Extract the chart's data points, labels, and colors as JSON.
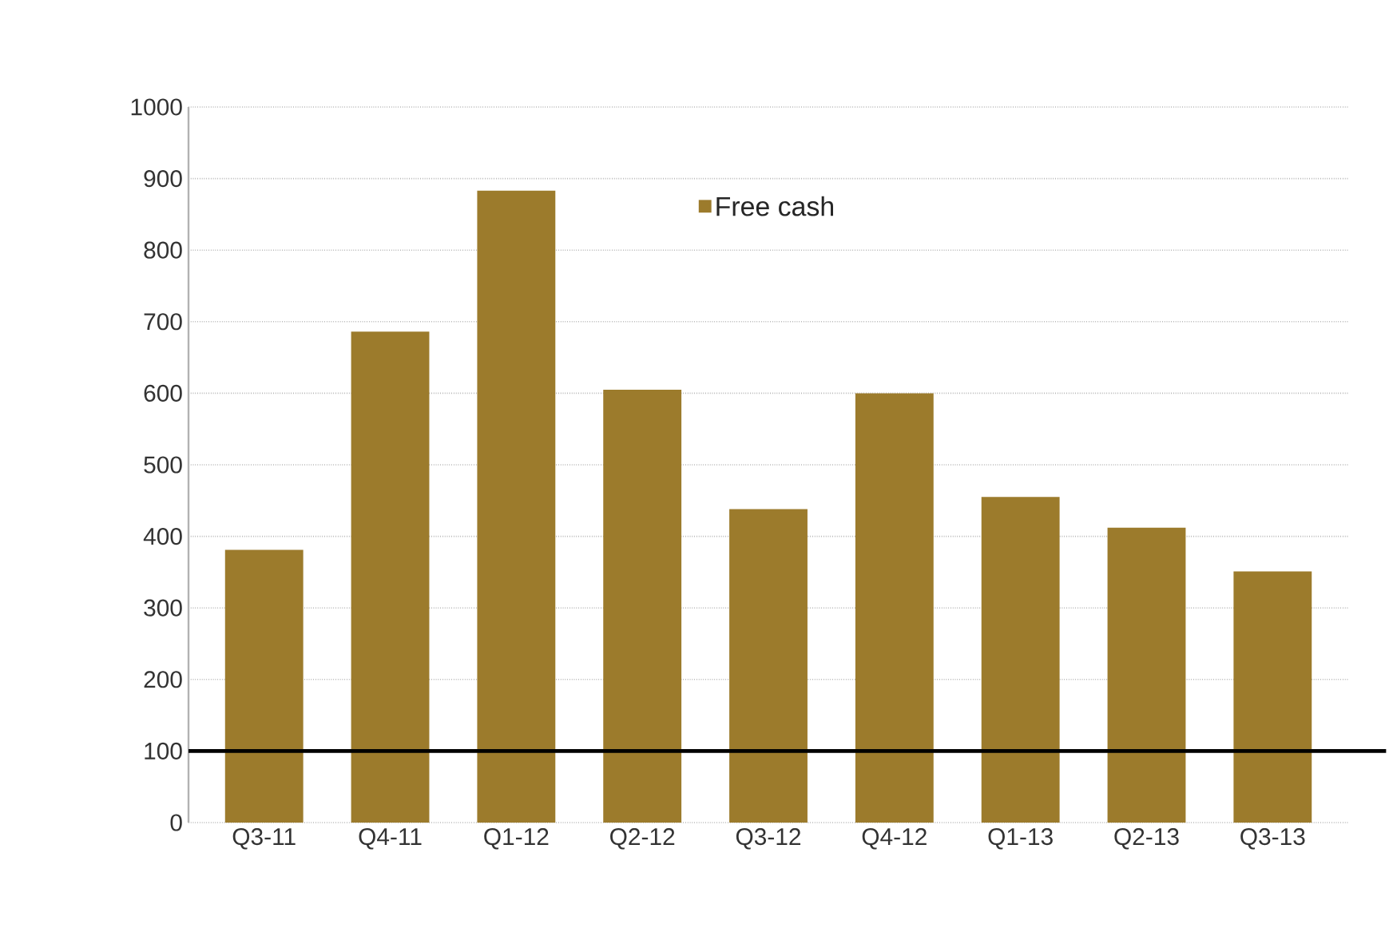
{
  "chart_data": {
    "type": "bar",
    "categories": [
      "Q3-11",
      "Q4-11",
      "Q1-12",
      "Q2-12",
      "Q3-12",
      "Q4-12",
      "Q1-13",
      "Q2-13",
      "Q3-13"
    ],
    "series": [
      {
        "name": "Free cash",
        "color": "#9c7b2c",
        "values": [
          381,
          686,
          883,
          605,
          438,
          600,
          455,
          412,
          351
        ]
      }
    ],
    "ylim": [
      0,
      1000
    ],
    "yticks": [
      0,
      100,
      200,
      300,
      400,
      500,
      600,
      700,
      800,
      900,
      1000
    ],
    "grid": "y",
    "legend": "top",
    "ref_lines": [
      {
        "axis": "y",
        "value": 100,
        "color": "#000000"
      }
    ]
  }
}
